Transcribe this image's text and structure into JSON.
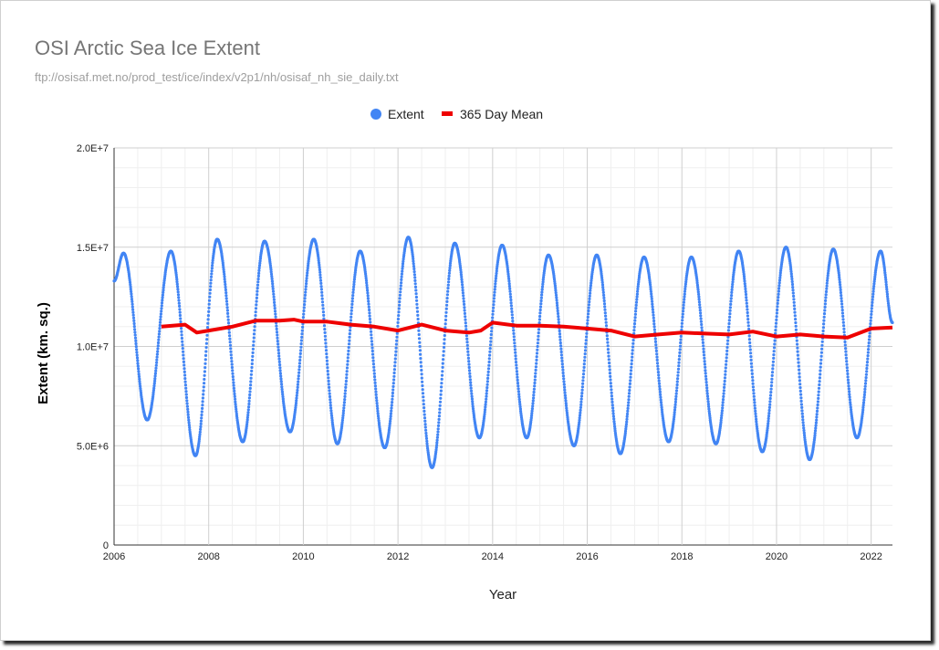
{
  "header": {
    "title": "OSI Arctic Sea Ice Extent",
    "subtitle": "ftp://osisaf.met.no/prod_test/ice/index/v2p1/nh/osisaf_nh_sie_daily.txt"
  },
  "colors": {
    "extent": "#4285f4",
    "mean": "#ee0000",
    "grid": "#e0e0e0",
    "minor_grid": "#efefef"
  },
  "chart_data": {
    "type": "line",
    "title": "OSI Arctic Sea Ice Extent",
    "subtitle": "ftp://osisaf.met.no/prod_test/ice/index/v2p1/nh/osisaf_nh_sie_daily.txt",
    "xlabel": "Year",
    "ylabel": "Extent (km. sq.)",
    "xlim": [
      2006,
      2022.45
    ],
    "ylim": [
      0,
      20000000
    ],
    "x_ticks": [
      "2006",
      "2008",
      "2010",
      "2012",
      "2014",
      "2016",
      "2018",
      "2020",
      "2022"
    ],
    "y_ticks": [
      "0",
      "5.0E+6",
      "1.0E+7",
      "1.5E+7",
      "2.0E+7"
    ],
    "legend": {
      "position": "top",
      "entries": [
        "Extent",
        "365 Day Mean"
      ]
    },
    "grid": true,
    "series": [
      {
        "name": "Extent",
        "style": "dots",
        "seasonal_extremes": [
          [
            2006.0,
            13300000
          ],
          [
            2006.2,
            14700000
          ],
          [
            2006.7,
            6300000
          ],
          [
            2007.2,
            14800000
          ],
          [
            2007.72,
            4500000
          ],
          [
            2008.18,
            15400000
          ],
          [
            2008.72,
            5200000
          ],
          [
            2009.18,
            15300000
          ],
          [
            2009.72,
            5700000
          ],
          [
            2010.22,
            15400000
          ],
          [
            2010.72,
            5100000
          ],
          [
            2011.2,
            14800000
          ],
          [
            2011.72,
            4900000
          ],
          [
            2012.22,
            15500000
          ],
          [
            2012.72,
            3900000
          ],
          [
            2013.2,
            15200000
          ],
          [
            2013.72,
            5400000
          ],
          [
            2014.2,
            15100000
          ],
          [
            2014.72,
            5400000
          ],
          [
            2015.18,
            14600000
          ],
          [
            2015.72,
            5000000
          ],
          [
            2016.2,
            14600000
          ],
          [
            2016.7,
            4600000
          ],
          [
            2017.2,
            14500000
          ],
          [
            2017.72,
            5200000
          ],
          [
            2018.2,
            14500000
          ],
          [
            2018.72,
            5100000
          ],
          [
            2019.2,
            14800000
          ],
          [
            2019.7,
            4700000
          ],
          [
            2020.2,
            15000000
          ],
          [
            2020.7,
            4300000
          ],
          [
            2021.2,
            14900000
          ],
          [
            2021.7,
            5400000
          ],
          [
            2022.2,
            14800000
          ],
          [
            2022.45,
            11200000
          ]
        ]
      },
      {
        "name": "365 Day Mean",
        "style": "line",
        "x": [
          2007.0,
          2007.5,
          2007.75,
          2008.0,
          2008.5,
          2009.0,
          2009.5,
          2009.8,
          2010.0,
          2010.5,
          2011.0,
          2011.5,
          2012.0,
          2012.5,
          2013.0,
          2013.5,
          2013.75,
          2014.0,
          2014.5,
          2015.0,
          2015.5,
          2016.0,
          2016.5,
          2017.0,
          2017.5,
          2018.0,
          2018.5,
          2019.0,
          2019.5,
          2020.0,
          2020.5,
          2021.0,
          2021.5,
          2022.0,
          2022.45
        ],
        "values": [
          11000000,
          11100000,
          10700000,
          10800000,
          11000000,
          11300000,
          11300000,
          11350000,
          11250000,
          11250000,
          11100000,
          11000000,
          10800000,
          11100000,
          10800000,
          10700000,
          10800000,
          11200000,
          11050000,
          11050000,
          11000000,
          10900000,
          10800000,
          10500000,
          10600000,
          10700000,
          10650000,
          10600000,
          10750000,
          10500000,
          10600000,
          10500000,
          10450000,
          10900000,
          10950000
        ]
      }
    ]
  }
}
